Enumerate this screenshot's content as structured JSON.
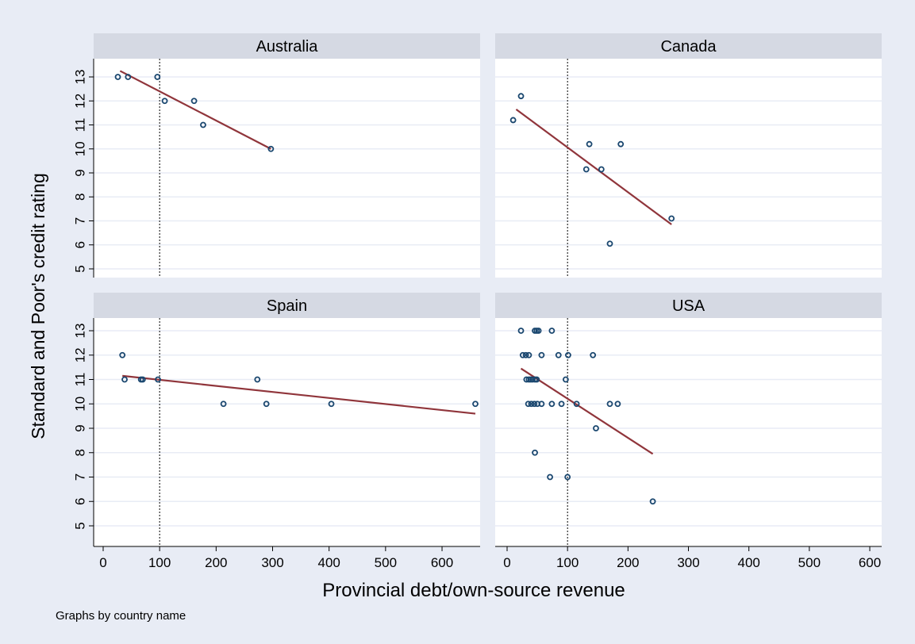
{
  "colors": {
    "outer_background": "#e8ecf5",
    "plot_background": "#ffffff",
    "strip_background": "#d5d9e3",
    "gridline": "#e8ecf5",
    "marker": "#1a476f",
    "fit_line": "#90353b",
    "reference_line": "#000000"
  },
  "chart_data": {
    "type": "scatter",
    "layout": "2x2 small multiples",
    "xlabel": "Provincial debt/own-source revenue",
    "ylabel": "Standard and Poor's credit rating",
    "note": "Graphs by  country name",
    "xlim": [
      -15,
      615
    ],
    "ylim": [
      4.5,
      13.8
    ],
    "xticks": [
      0,
      100,
      200,
      300,
      400,
      500,
      600
    ],
    "yticks": [
      5,
      6,
      7,
      8,
      9,
      10,
      11,
      12,
      13
    ],
    "reference_line_x": 100,
    "grid": true,
    "panels": [
      {
        "name": "Australia",
        "points": [
          [
            26,
            13
          ],
          [
            44,
            13
          ],
          [
            96,
            13
          ],
          [
            109,
            12
          ],
          [
            161,
            12
          ],
          [
            177,
            11
          ],
          [
            297,
            10
          ]
        ],
        "fit": [
          [
            30,
            13.25
          ],
          [
            297,
            10
          ]
        ]
      },
      {
        "name": "Canada",
        "points": [
          [
            10,
            11.2
          ],
          [
            23,
            12.2
          ],
          [
            136,
            10.2
          ],
          [
            188,
            10.2
          ],
          [
            131,
            9.15
          ],
          [
            156,
            9.15
          ],
          [
            272,
            7.1
          ],
          [
            170,
            6.05
          ]
        ],
        "fit": [
          [
            15,
            11.65
          ],
          [
            272,
            6.85
          ]
        ]
      },
      {
        "name": "Spain",
        "points": [
          [
            34,
            12
          ],
          [
            38,
            11
          ],
          [
            67,
            11
          ],
          [
            70,
            11
          ],
          [
            97,
            11
          ],
          [
            273,
            11
          ],
          [
            213,
            10
          ],
          [
            289,
            10
          ],
          [
            404,
            10
          ],
          [
            659,
            10
          ]
        ],
        "fit": [
          [
            34,
            11.15
          ],
          [
            659,
            9.6
          ]
        ]
      },
      {
        "name": "USA",
        "points": [
          [
            23,
            13
          ],
          [
            46,
            13
          ],
          [
            49,
            13
          ],
          [
            52,
            13
          ],
          [
            74,
            13
          ],
          [
            26,
            12
          ],
          [
            31,
            12
          ],
          [
            36,
            12
          ],
          [
            57,
            12
          ],
          [
            85,
            12
          ],
          [
            101,
            12
          ],
          [
            142,
            12
          ],
          [
            32,
            11
          ],
          [
            36,
            11
          ],
          [
            39,
            11
          ],
          [
            42,
            11
          ],
          [
            46,
            11
          ],
          [
            49,
            11
          ],
          [
            97,
            11
          ],
          [
            35,
            10
          ],
          [
            40,
            10
          ],
          [
            45,
            10
          ],
          [
            50,
            10
          ],
          [
            57,
            10
          ],
          [
            74,
            10
          ],
          [
            90,
            10
          ],
          [
            115,
            10
          ],
          [
            170,
            10
          ],
          [
            183,
            10
          ],
          [
            147,
            9
          ],
          [
            46,
            8
          ],
          [
            71,
            7
          ],
          [
            100,
            7
          ],
          [
            241,
            6
          ]
        ],
        "fit": [
          [
            23,
            11.45
          ],
          [
            241,
            7.95
          ]
        ]
      }
    ]
  }
}
